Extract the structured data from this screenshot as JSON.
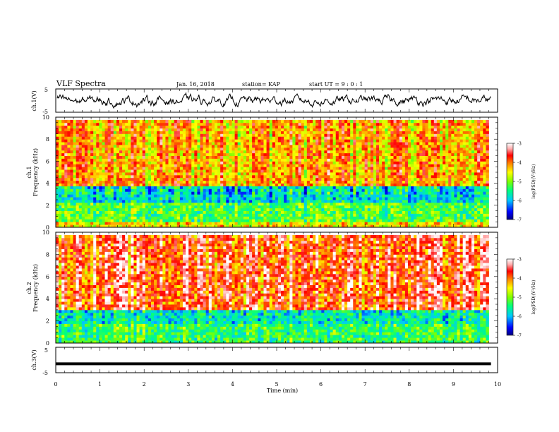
{
  "header": {
    "title": "VLF Spectra",
    "date": "Jan. 16, 2018",
    "station": "station= KAP",
    "start_ut": "start  UT  =  9 : 0  : 1"
  },
  "chart_data": [
    {
      "type": "line",
      "panel": "ch1-waveform",
      "ylabel": "ch.1(V)",
      "yticks": [
        "5",
        "0",
        "-5"
      ],
      "ylim": [
        -5,
        5
      ],
      "xlim": [
        0,
        10
      ],
      "series": [
        {
          "name": "",
          "color": "#000000",
          "description_values": "noisy signal around 0 V, amplitude about ±3 V"
        }
      ]
    },
    {
      "type": "heatmap",
      "panel": "ch1-spectrogram",
      "ylabel_line1": "ch.1",
      "ylabel_line2": "Frequency (kHz)",
      "yticks": [
        "0",
        "2",
        "4",
        "6",
        "8",
        "10"
      ],
      "ylim": [
        0,
        10
      ],
      "xlim": [
        0,
        9.8
      ],
      "colorbar": {
        "ticks": [
          "-3",
          "-4",
          "-5",
          "-6",
          "-7"
        ],
        "label": "log(PSD)(V²/Hz)",
        "range": [
          -7,
          -3
        ],
        "colors": [
          "#000080",
          "#0000ff",
          "#00c0ff",
          "#00ff80",
          "#80ff00",
          "#ffff00",
          "#ff8000",
          "#ff0000",
          "#ffb0b0",
          "#ffffff"
        ]
      },
      "description_levels": [
        {
          "freq_range": [
            0,
            0.6
          ],
          "level": -4.5
        },
        {
          "freq_range": [
            0.6,
            2.3
          ],
          "level": -5.2
        },
        {
          "freq_range": [
            2.3,
            3.8
          ],
          "level": -5.8
        },
        {
          "freq_range": [
            3.8,
            9.8
          ],
          "level": -4.2
        }
      ]
    },
    {
      "type": "heatmap",
      "panel": "ch2-spectrogram",
      "ylabel_line1": "ch.2",
      "ylabel_line2": "Frequency (kHz)",
      "yticks": [
        "0",
        "2",
        "4",
        "6",
        "8",
        "10"
      ],
      "ylim": [
        0,
        10
      ],
      "xlim": [
        0,
        9.8
      ],
      "colorbar": {
        "ticks": [
          "-3",
          "-4",
          "-5",
          "-6",
          "-7"
        ],
        "label": "log(PSD)(V²/Hz)",
        "range": [
          -7,
          -3
        ]
      },
      "description_levels": [
        {
          "freq_range": [
            0,
            1.8
          ],
          "level": -5.3
        },
        {
          "freq_range": [
            1.8,
            3.0
          ],
          "level": -5.7
        },
        {
          "freq_range": [
            3.0,
            9.8
          ],
          "level": -3.7
        }
      ]
    },
    {
      "type": "line",
      "panel": "ch3-waveform",
      "ylabel": "ch.3(V)",
      "yticks": [
        "5",
        "0",
        "-5"
      ],
      "ylim": [
        -5,
        5
      ],
      "xlim": [
        0,
        10
      ],
      "series": [
        {
          "name": "",
          "color": "#000000",
          "x": [
            0,
            9.85
          ],
          "y": [
            -1.5,
            -1.5
          ]
        }
      ]
    }
  ],
  "xaxis": {
    "label": "Time (min)",
    "ticks": [
      "0",
      "1",
      "2",
      "3",
      "4",
      "5",
      "6",
      "7",
      "8",
      "9",
      "10"
    ]
  }
}
